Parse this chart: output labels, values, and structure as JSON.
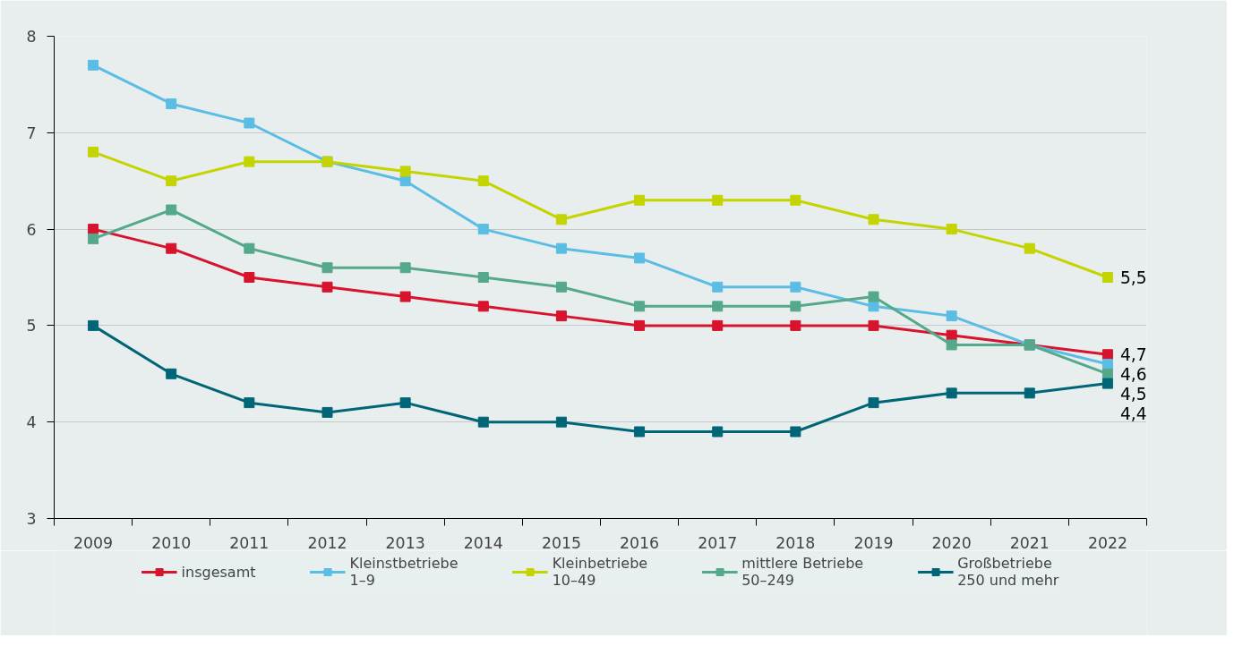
{
  "chart_data": {
    "type": "line",
    "categories": [
      "2009",
      "2010",
      "2011",
      "2012",
      "2013",
      "2014",
      "2015",
      "2016",
      "2017",
      "2018",
      "2019",
      "2020",
      "2021",
      "2022"
    ],
    "ylim": [
      3,
      8
    ],
    "yticks": [
      3,
      4,
      5,
      6,
      7,
      8
    ],
    "grid": "y",
    "legend": "bottom",
    "marker": "square",
    "line_style": "solid",
    "series": [
      {
        "name": "insgesamt",
        "color": "#d7132e",
        "values": [
          6.0,
          5.8,
          5.5,
          5.4,
          5.3,
          5.2,
          5.1,
          5.0,
          5.0,
          5.0,
          5.0,
          4.9,
          4.8,
          4.7
        ],
        "value_labels": [
          null,
          null,
          null,
          null,
          null,
          null,
          null,
          null,
          null,
          null,
          null,
          null,
          null,
          "4,7"
        ]
      },
      {
        "name": "Kleinstbetriebe\n1–9",
        "color": "#5bbde3",
        "values": [
          7.7,
          7.3,
          7.1,
          6.7,
          6.5,
          6.0,
          5.8,
          5.7,
          5.4,
          5.4,
          5.2,
          5.1,
          4.8,
          4.6
        ],
        "value_labels": [
          null,
          null,
          null,
          null,
          null,
          null,
          null,
          null,
          null,
          null,
          null,
          null,
          null,
          "4,6"
        ]
      },
      {
        "name": "Kleinbetriebe\n10–49",
        "color": "#c3d400",
        "values": [
          6.8,
          6.5,
          6.7,
          6.7,
          6.6,
          6.5,
          6.1,
          6.3,
          6.3,
          6.3,
          6.1,
          6.0,
          5.8,
          5.5
        ],
        "value_labels": [
          null,
          null,
          null,
          null,
          null,
          null,
          null,
          null,
          null,
          null,
          null,
          null,
          null,
          "5,5"
        ]
      },
      {
        "name": "mittlere Betriebe\n50–249",
        "color": "#55a98a",
        "values": [
          5.9,
          6.2,
          5.8,
          5.6,
          5.6,
          5.5,
          5.4,
          5.2,
          5.2,
          5.2,
          5.3,
          4.8,
          4.8,
          4.5
        ],
        "value_labels": [
          null,
          null,
          null,
          null,
          null,
          null,
          null,
          null,
          null,
          null,
          null,
          null,
          null,
          "4,5"
        ]
      },
      {
        "name": "Großbetriebe\n250 und mehr",
        "color": "#006677",
        "values": [
          5.0,
          4.5,
          4.2,
          4.1,
          4.2,
          4.0,
          4.0,
          3.9,
          3.9,
          3.9,
          4.2,
          4.3,
          4.3,
          4.4
        ],
        "value_labels": [
          null,
          null,
          null,
          null,
          null,
          null,
          null,
          null,
          null,
          null,
          null,
          null,
          null,
          "4,4"
        ]
      }
    ]
  }
}
